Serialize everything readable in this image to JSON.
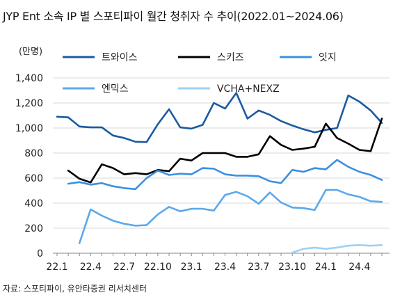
{
  "title": "JYP Ent 소속 IP 별 스포티파이 월간 청취자 수 추이(2022.01~2024.06)",
  "source": "자료: 스포티파이, 유안타증권 리서치센터",
  "chart_data": {
    "type": "line",
    "title": "JYP Ent 소속 IP 별 스포티파이 월간 청취자 수 추이(2022.01~2024.06)",
    "ylabel": "(만명)",
    "xlabel": "",
    "ylim": [
      0,
      1400
    ],
    "yticks": [
      0,
      200,
      400,
      600,
      800,
      1000,
      1200,
      1400
    ],
    "ytick_labels": [
      "0",
      "200",
      "400",
      "600",
      "800",
      "1,000",
      "1,200",
      "1,400"
    ],
    "xtick_labels": [
      "22.1",
      "22.4",
      "22.7",
      "22.10",
      "23.1",
      "23.4",
      "23.7",
      "23.10",
      "24.1",
      "24.4"
    ],
    "xtick_months": [
      1,
      4,
      7,
      10,
      13,
      16,
      19,
      22,
      25,
      28
    ],
    "x_range_months": [
      1,
      30
    ],
    "grid": "horizontal",
    "legend_placement": "top",
    "series": [
      {
        "name": "트와이스",
        "color": "#1a5aa0",
        "x": [
          1,
          2,
          3,
          4,
          5,
          6,
          7,
          8,
          9,
          10,
          11,
          12,
          13,
          14,
          15,
          16,
          17,
          18,
          19,
          20,
          21,
          22,
          23,
          24,
          25,
          26,
          27,
          28,
          29,
          30
        ],
        "values": [
          1090,
          1085,
          1012,
          1005,
          1005,
          940,
          920,
          890,
          888,
          1030,
          1150,
          1005,
          995,
          1025,
          1200,
          1155,
          1280,
          1075,
          1140,
          1105,
          1055,
          1020,
          990,
          965,
          985,
          1000,
          1260,
          1210,
          1140,
          1040
        ]
      },
      {
        "name": "스키즈",
        "color": "#000000",
        "x": [
          2,
          3,
          4,
          5,
          6,
          7,
          8,
          9,
          10,
          11,
          12,
          13,
          14,
          15,
          16,
          17,
          18,
          19,
          20,
          21,
          22,
          23,
          24,
          25,
          26,
          27,
          28,
          29,
          30
        ],
        "values": [
          660,
          595,
          565,
          710,
          680,
          630,
          640,
          630,
          665,
          655,
          755,
          740,
          800,
          800,
          800,
          770,
          770,
          790,
          935,
          865,
          825,
          835,
          850,
          1035,
          920,
          875,
          825,
          815,
          1075
        ]
      },
      {
        "name": "잇지",
        "color": "#3d8fe0",
        "x": [
          2,
          3,
          4,
          5,
          6,
          7,
          8,
          9,
          10,
          11,
          12,
          13,
          14,
          15,
          16,
          17,
          18,
          19,
          20,
          21,
          22,
          23,
          24,
          25,
          26,
          27,
          28,
          29,
          30
        ],
        "values": [
          555,
          568,
          548,
          560,
          535,
          520,
          512,
          600,
          660,
          625,
          635,
          630,
          680,
          675,
          630,
          620,
          620,
          615,
          575,
          560,
          665,
          650,
          680,
          670,
          745,
          690,
          650,
          625,
          585
        ]
      },
      {
        "name": "엔믹스",
        "color": "#5aa8ec",
        "x": [
          3,
          4,
          5,
          6,
          7,
          8,
          9,
          10,
          11,
          12,
          13,
          14,
          15,
          16,
          17,
          18,
          19,
          20,
          21,
          22,
          23,
          24,
          25,
          26,
          27,
          28,
          29,
          30
        ],
        "values": [
          80,
          350,
          300,
          260,
          235,
          220,
          225,
          310,
          370,
          335,
          355,
          355,
          340,
          465,
          490,
          455,
          395,
          485,
          405,
          365,
          360,
          345,
          505,
          505,
          470,
          450,
          415,
          410
        ]
      },
      {
        "name": "VCHA+NEXZ",
        "color": "#9fd0f5",
        "x": [
          22,
          23,
          24,
          25,
          26,
          27,
          28,
          29,
          30
        ],
        "values": [
          5,
          35,
          45,
          35,
          45,
          60,
          65,
          60,
          65
        ]
      }
    ]
  }
}
